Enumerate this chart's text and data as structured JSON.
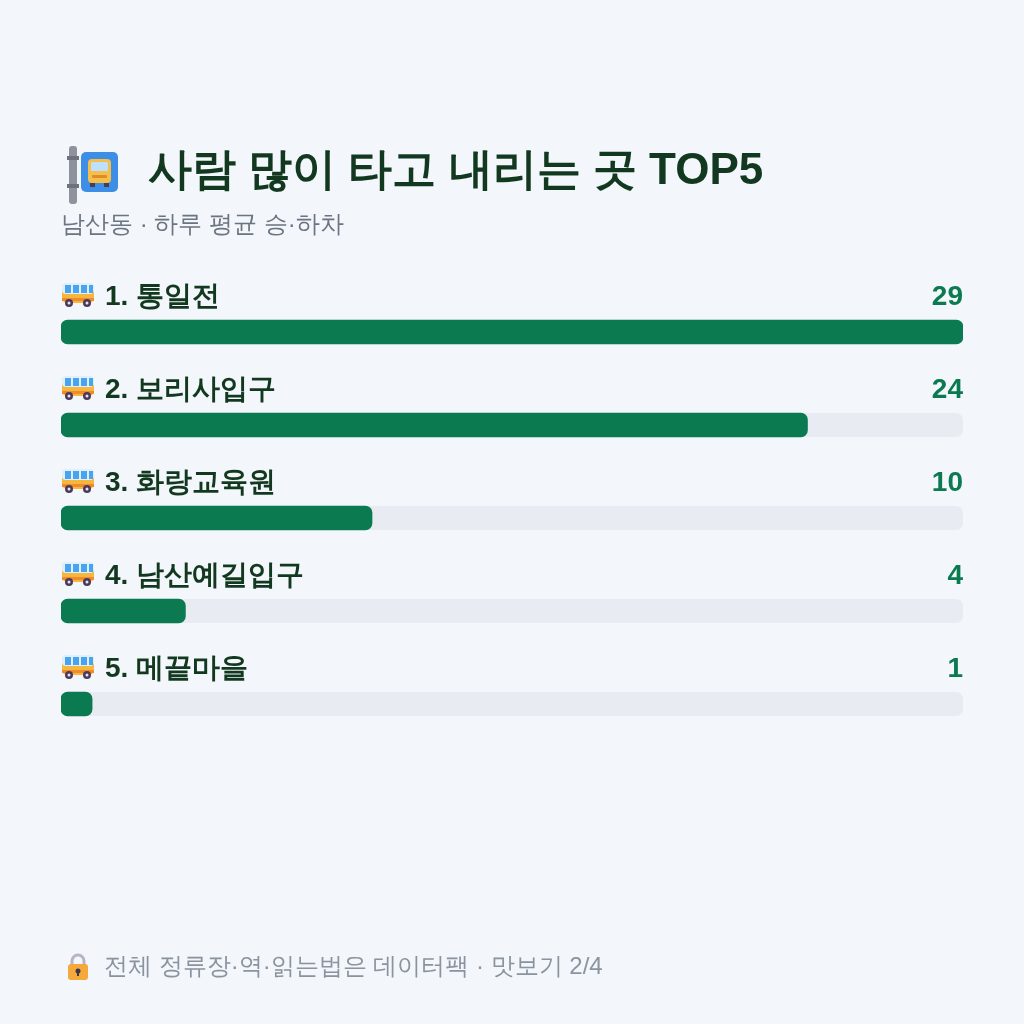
{
  "chart_data": {
    "type": "bar",
    "orientation": "horizontal",
    "title": "사람 많이 타고 내리는 곳 TOP5",
    "subtitle": "남산동 · 하루 평균 승·하차",
    "categories": [
      "1. 통일전",
      "2. 보리사입구",
      "3. 화랑교육원",
      "4. 남산예길입구",
      "5. 메끝마을"
    ],
    "values": [
      29,
      24,
      10,
      4,
      1
    ],
    "color": "#0b7a50",
    "xlim": [
      0,
      29
    ],
    "data_labels": true,
    "tick_labels": "y",
    "annotations": [
      "전체 정류장·역·읽는법은 데이터팩 · 맛보기 2/4"
    ]
  }
}
